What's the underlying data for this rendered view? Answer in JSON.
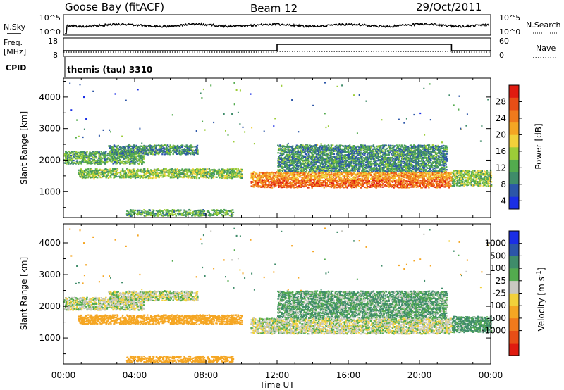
{
  "header": {
    "station": "Goose Bay (fitACF)",
    "beam": "Beam 12",
    "date": "29/Oct/2011"
  },
  "panels": {
    "noise": {
      "left_label": "N.Sky",
      "right_label": "N.Search",
      "left_ticks": [
        "10^5",
        "10^0"
      ],
      "right_ticks": [
        "10^5",
        "10^0"
      ]
    },
    "freq": {
      "left_label_1": "Freq.",
      "left_label_2": "[MHz]",
      "right_label": "Nave",
      "left_ticks": [
        "18",
        "8"
      ],
      "right_ticks": [
        "60",
        "0"
      ]
    },
    "cpid": {
      "label": "CPID",
      "text": "themis (tau) 3310"
    }
  },
  "chart_data": [
    {
      "type": "heatmap",
      "title": "",
      "xlabel": "Time UT",
      "ylabel": "Slant Range [km]",
      "xlim": [
        "00:00",
        "24:00"
      ],
      "ylim": [
        180,
        4600
      ],
      "x_ticks": [
        "00:00",
        "04:00",
        "08:00",
        "12:00",
        "16:00",
        "20:00",
        "00:00"
      ],
      "y_ticks": [
        1000,
        2000,
        3000,
        4000
      ],
      "colorbar": {
        "label": "Power [dB]",
        "ticks": [
          4,
          8,
          12,
          16,
          20,
          24,
          28
        ],
        "colors": [
          "#1a2ee6",
          "#2c56a8",
          "#3f8c6a",
          "#53ab4e",
          "#9ccd38",
          "#f2d13a",
          "#f5a623",
          "#f07a1c",
          "#e84e16",
          "#e01b10"
        ]
      },
      "echo_regions": [
        {
          "t_start": 0.0,
          "t_end": 4.5,
          "r_min": 1900,
          "r_max": 2300,
          "value": 12
        },
        {
          "t_start": 0.8,
          "t_end": 10.0,
          "r_min": 1450,
          "r_max": 1750,
          "value": 14
        },
        {
          "t_start": 2.5,
          "t_end": 7.5,
          "r_min": 2200,
          "r_max": 2500,
          "value": 10
        },
        {
          "t_start": 3.5,
          "t_end": 9.5,
          "r_min": 250,
          "r_max": 450,
          "value": 12
        },
        {
          "t_start": 10.5,
          "t_end": 21.8,
          "r_min": 1150,
          "r_max": 1650,
          "value": 22
        },
        {
          "t_start": 12.0,
          "t_end": 21.5,
          "r_min": 1650,
          "r_max": 2500,
          "value": 10
        },
        {
          "t_start": 21.8,
          "t_end": 24.0,
          "r_min": 1200,
          "r_max": 1700,
          "value": 14
        }
      ]
    },
    {
      "type": "heatmap",
      "title": "",
      "xlabel": "Time UT",
      "ylabel": "Slant Range [km]",
      "xlim": [
        "00:00",
        "24:00"
      ],
      "ylim": [
        180,
        4600
      ],
      "x_ticks": [
        "00:00",
        "04:00",
        "08:00",
        "12:00",
        "16:00",
        "20:00",
        "00:00"
      ],
      "y_ticks": [
        1000,
        2000,
        3000,
        4000
      ],
      "colorbar": {
        "label": "Velocity [m s^-1]",
        "ticks": [
          1000,
          500,
          100,
          25,
          -25,
          -100,
          -500,
          -1000
        ],
        "colors": [
          "#1a2ee6",
          "#2c56a8",
          "#3f8c6a",
          "#53ab4e",
          "#c8c8c0",
          "#f2d13a",
          "#f5a623",
          "#f07a1c",
          "#e84e16",
          "#e01b10"
        ]
      },
      "echo_regions": [
        {
          "t_start": 0.0,
          "t_end": 4.5,
          "r_min": 1900,
          "r_max": 2300,
          "value": 0
        },
        {
          "t_start": 0.8,
          "t_end": 10.0,
          "r_min": 1450,
          "r_max": 1750,
          "value": -150
        },
        {
          "t_start": 2.5,
          "t_end": 7.5,
          "r_min": 2200,
          "r_max": 2500,
          "value": 0
        },
        {
          "t_start": 3.5,
          "t_end": 9.5,
          "r_min": 250,
          "r_max": 450,
          "value": -200
        },
        {
          "t_start": 10.5,
          "t_end": 21.8,
          "r_min": 1150,
          "r_max": 1650,
          "value": 0
        },
        {
          "t_start": 12.0,
          "t_end": 21.5,
          "r_min": 1650,
          "r_max": 2500,
          "value": 60
        },
        {
          "t_start": 21.8,
          "t_end": 24.0,
          "r_min": 1200,
          "r_max": 1700,
          "value": 80
        }
      ]
    }
  ]
}
